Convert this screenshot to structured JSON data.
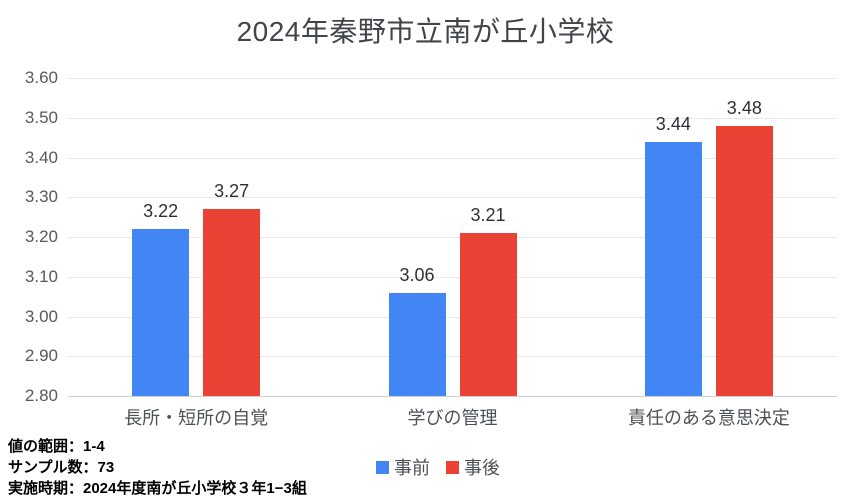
{
  "title": "2024年秦野市立南が丘小学校",
  "chart_data": {
    "type": "bar",
    "title": "2024年秦野市立南が丘小学校",
    "categories": [
      "長所・短所の自覚",
      "学びの管理",
      "責任のある意思決定"
    ],
    "series": [
      {
        "name": "事前",
        "color": "#4285F4",
        "values": [
          3.22,
          3.06,
          3.44
        ]
      },
      {
        "name": "事後",
        "color": "#EA4335",
        "values": [
          3.27,
          3.21,
          3.48
        ]
      }
    ],
    "ylim": [
      2.8,
      3.6
    ],
    "ytick_step": 0.1,
    "grid": true,
    "legend_position": "bottom",
    "xlabel": "",
    "ylabel": ""
  },
  "footer": {
    "line1": "値の範囲：1-4",
    "line2": "サンプル数：73",
    "line3": "実施時期：2024年度南が丘小学校３年1−3組"
  },
  "colors": {
    "pre_bar": "#4285F4",
    "post_bar": "#EA4335",
    "gridline": "#e8e8e8",
    "axis_line": "#cfcfcf",
    "title_text": "#414549",
    "tick_text": "#57595c",
    "value_text": "#2e3134",
    "background": "#ffffff"
  }
}
